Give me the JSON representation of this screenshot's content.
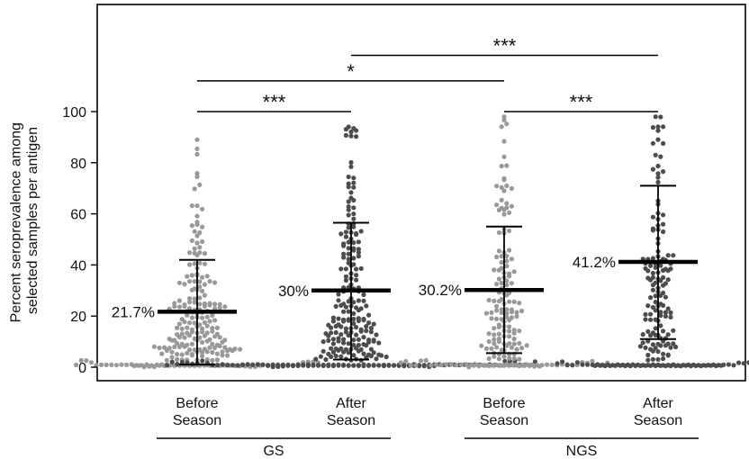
{
  "chart_data": {
    "type": "scatter",
    "subtype": "beeswarm-dot-plot",
    "ylabel_line1": "Percent seroprevalence among",
    "ylabel_line2": "selected samples per antigen",
    "ylim": [
      -5,
      125
    ],
    "yticks": [
      0,
      20,
      40,
      60,
      80,
      100
    ],
    "grid": false,
    "legend": "none",
    "categories": [
      {
        "line1": "Before",
        "line2": "Season",
        "group": "GS"
      },
      {
        "line1": "After",
        "line2": "Season",
        "group": "GS"
      },
      {
        "line1": "Before",
        "line2": "Season",
        "group": "NGS"
      },
      {
        "line1": "After",
        "line2": "Season",
        "group": "NGS"
      }
    ],
    "groups": [
      "GS",
      "NGS"
    ],
    "series": [
      {
        "mean": 21.7,
        "mean_label": "21.7%",
        "sd_low": 1,
        "sd_high": 42,
        "color": "#999999",
        "n": 260,
        "min": 0,
        "max": 89
      },
      {
        "mean": 30,
        "mean_label": "30%",
        "sd_low": 3,
        "sd_high": 56.5,
        "color": "#4d4d4d",
        "n": 300,
        "min": 0,
        "max": 94
      },
      {
        "mean": 30.2,
        "mean_label": "30.2%",
        "sd_low": 5.5,
        "sd_high": 55,
        "color": "#999999",
        "n": 190,
        "min": 0,
        "max": 98
      },
      {
        "mean": 41.2,
        "mean_label": "41.2%",
        "sd_low": 11,
        "sd_high": 71,
        "color": "#4d4d4d",
        "n": 200,
        "min": 0,
        "max": 98
      }
    ],
    "significance": [
      {
        "from": 0,
        "to": 1,
        "label": "***",
        "level": 100
      },
      {
        "from": 0,
        "to": 2,
        "label": "*",
        "level": 112
      },
      {
        "from": 1,
        "to": 3,
        "label": "***",
        "level": 122
      },
      {
        "from": 2,
        "to": 3,
        "label": "***",
        "level": 100
      }
    ]
  }
}
